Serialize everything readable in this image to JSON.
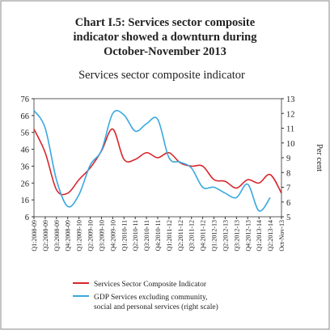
{
  "chart_data": {
    "type": "line",
    "title": [
      "Chart I.5: Services sector composite",
      "indicator showed a downturn during",
      "October-November 2013"
    ],
    "subtitle": "Services sector composite indicator",
    "y2_label": "Per cent",
    "categories": [
      "Q1:2008-09",
      "Q2:2008-09",
      "Q3:2008-09",
      "Q4:2008-09",
      "Q1:2009-10",
      "Q2:2009-10",
      "Q3:2009-10",
      "Q4:2009-10",
      "Q1:2010-11",
      "Q2:2010-11",
      "Q3:2010-11",
      "Q4:2010-11",
      "Q1:2011-12",
      "Q2:2011-12",
      "Q3:2011-12",
      "Q4:2011-12",
      "Q1:2012-13",
      "Q2:2012-13",
      "Q3:2012-13",
      "Q4:2012-13",
      "Q1:2013-14",
      "Q2:2013-14",
      "Oct-Nov-13"
    ],
    "series": [
      {
        "name": "Services Sector Composite Indicator",
        "color": "#d7262b",
        "values": [
          58,
          44,
          22,
          20,
          28,
          35,
          45,
          58,
          40,
          40,
          44,
          41,
          44,
          38,
          36,
          36,
          28,
          27,
          23,
          28,
          26,
          31,
          20
        ]
      },
      {
        "name": [
          "GDP Services excluding community,",
          "social and personal services (right scale)"
        ],
        "color": "#3aa8de",
        "axis": "y2",
        "values": [
          12.2,
          11.0,
          7.5,
          5.7,
          6.5,
          8.5,
          9.5,
          12.0,
          11.9,
          10.8,
          11.3,
          11.6,
          9.0,
          8.7,
          8.3,
          7.0,
          7.0,
          6.6,
          6.3,
          7.2,
          5.4,
          6.3,
          null
        ]
      }
    ],
    "ylim": [
      6,
      76
    ],
    "yticks": [
      6,
      16,
      26,
      36,
      46,
      56,
      66,
      76
    ],
    "y2lim": [
      5,
      13
    ],
    "y2ticks": [
      5,
      6,
      7,
      8,
      9,
      10,
      11,
      12,
      13
    ]
  }
}
